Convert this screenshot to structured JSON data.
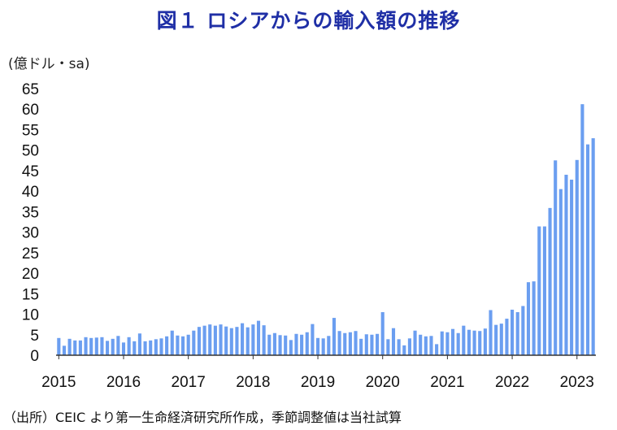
{
  "title": "図１ ロシアからの輸入額の推移",
  "unit_label": "(億ドル・sa)",
  "source": "（出所）CEIC より第一生命経済研究所作成，季節調整値は当社試算",
  "colors": {
    "bar": "#6b9ef0",
    "axis": "#333333",
    "title": "#1f2fa6"
  },
  "chart_data": {
    "type": "bar",
    "title": "図１ ロシアからの輸入額の推移",
    "ylabel": "(億ドル・sa)",
    "xlabel": "",
    "ylim": [
      0,
      65
    ],
    "yticks": [
      0,
      5,
      10,
      15,
      20,
      25,
      30,
      35,
      40,
      45,
      50,
      55,
      60,
      65
    ],
    "xtick_labels": [
      "2015",
      "2016",
      "2017",
      "2018",
      "2019",
      "2020",
      "2021",
      "2022",
      "2023"
    ],
    "grid": false,
    "series": [
      {
        "values": [
          4.2,
          2.3,
          4.0,
          3.6,
          3.6,
          4.4,
          4.2,
          4.3,
          4.4,
          3.5,
          4.0,
          4.7,
          3.1,
          4.4,
          3.4,
          5.3,
          3.4,
          3.6,
          3.9,
          4.1,
          4.6,
          6.0,
          4.8,
          4.6,
          5.0,
          6.0,
          6.9,
          7.2,
          7.5,
          7.2,
          7.5,
          7.0,
          6.6,
          6.9,
          7.8,
          6.8,
          7.5,
          8.4,
          7.3,
          5.0,
          5.4,
          4.9,
          4.8,
          3.7,
          5.2,
          5.0,
          5.6,
          7.6,
          4.2,
          4.1,
          4.7,
          9.1,
          5.9,
          5.4,
          5.6,
          5.9,
          4.0,
          5.1,
          5.0,
          5.2,
          10.5,
          3.9,
          6.6,
          3.9,
          2.4,
          4.1,
          6.0,
          5.0,
          4.6,
          4.7,
          2.7,
          5.8,
          5.6,
          6.4,
          5.4,
          7.2,
          6.2,
          6.0,
          5.9,
          6.5,
          11.0,
          7.4,
          7.7,
          8.9,
          11.1,
          10.5,
          12.0,
          17.8,
          18.0,
          31.4,
          31.4,
          35.9,
          47.5,
          40.5,
          44.0,
          42.8,
          47.6,
          61.2,
          51.4,
          52.9
        ]
      }
    ]
  }
}
